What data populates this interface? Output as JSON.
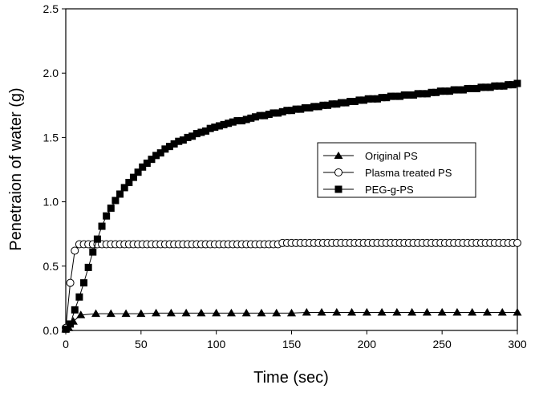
{
  "chart_data": {
    "type": "line",
    "title": "",
    "xlabel": "Time (sec)",
    "ylabel": "Penetraion of water (g)",
    "xlim": [
      0,
      300
    ],
    "ylim": [
      0,
      2.5
    ],
    "xticks": [
      0,
      50,
      100,
      150,
      200,
      250,
      300
    ],
    "xtick_labels": [
      "0",
      "50",
      "100",
      "150",
      "200",
      "250",
      "300"
    ],
    "yticks": [
      0,
      0.5,
      1.0,
      1.5,
      2.0,
      2.5
    ],
    "ytick_labels": [
      "0.0",
      "0.5",
      "1.0",
      "1.5",
      "2.0",
      "2.5"
    ],
    "grid": false,
    "legend_position": "center-right",
    "series": [
      {
        "name": "Original PS",
        "marker": "filled-triangle",
        "color": "#000000",
        "x": [
          0,
          2,
          5,
          10,
          20,
          30,
          40,
          50,
          60,
          70,
          80,
          90,
          100,
          110,
          120,
          130,
          140,
          150,
          160,
          170,
          180,
          190,
          200,
          210,
          220,
          230,
          240,
          250,
          260,
          270,
          280,
          290,
          300
        ],
        "y": [
          0.01,
          0.02,
          0.07,
          0.12,
          0.13,
          0.13,
          0.13,
          0.13,
          0.135,
          0.135,
          0.135,
          0.135,
          0.135,
          0.135,
          0.135,
          0.135,
          0.135,
          0.135,
          0.14,
          0.14,
          0.14,
          0.14,
          0.14,
          0.14,
          0.14,
          0.14,
          0.14,
          0.14,
          0.14,
          0.14,
          0.14,
          0.14,
          0.14
        ]
      },
      {
        "name": "Plasma treated PS",
        "marker": "open-circle",
        "color": "#000000",
        "x": [
          0,
          3,
          6,
          9,
          12,
          15,
          18,
          21,
          24,
          27,
          30,
          33,
          36,
          39,
          42,
          45,
          48,
          51,
          54,
          57,
          60,
          63,
          66,
          69,
          72,
          75,
          78,
          81,
          84,
          87,
          90,
          93,
          96,
          99,
          102,
          105,
          108,
          111,
          114,
          117,
          120,
          123,
          126,
          129,
          132,
          135,
          138,
          141,
          144,
          147,
          150,
          153,
          156,
          159,
          162,
          165,
          168,
          171,
          174,
          177,
          180,
          183,
          186,
          189,
          192,
          195,
          198,
          201,
          204,
          207,
          210,
          213,
          216,
          219,
          222,
          225,
          228,
          231,
          234,
          237,
          240,
          243,
          246,
          249,
          252,
          255,
          258,
          261,
          264,
          267,
          270,
          273,
          276,
          279,
          282,
          285,
          288,
          291,
          294,
          297,
          300
        ],
        "y": [
          0.02,
          0.37,
          0.62,
          0.67,
          0.67,
          0.67,
          0.67,
          0.67,
          0.67,
          0.67,
          0.67,
          0.67,
          0.67,
          0.67,
          0.67,
          0.67,
          0.67,
          0.67,
          0.67,
          0.67,
          0.67,
          0.67,
          0.67,
          0.67,
          0.67,
          0.67,
          0.67,
          0.67,
          0.67,
          0.67,
          0.67,
          0.67,
          0.67,
          0.67,
          0.67,
          0.67,
          0.67,
          0.67,
          0.67,
          0.67,
          0.67,
          0.67,
          0.67,
          0.67,
          0.67,
          0.67,
          0.67,
          0.67,
          0.68,
          0.68,
          0.68,
          0.68,
          0.68,
          0.68,
          0.68,
          0.68,
          0.68,
          0.68,
          0.68,
          0.68,
          0.68,
          0.68,
          0.68,
          0.68,
          0.68,
          0.68,
          0.68,
          0.68,
          0.68,
          0.68,
          0.68,
          0.68,
          0.68,
          0.68,
          0.68,
          0.68,
          0.68,
          0.68,
          0.68,
          0.68,
          0.68,
          0.68,
          0.68,
          0.68,
          0.68,
          0.68,
          0.68,
          0.68,
          0.68,
          0.68,
          0.68,
          0.68,
          0.68,
          0.68,
          0.68,
          0.68,
          0.68,
          0.68,
          0.68,
          0.68,
          0.68
        ]
      },
      {
        "name": "PEG-g-PS",
        "marker": "filled-square",
        "color": "#000000",
        "x": [
          0,
          3,
          6,
          9,
          12,
          15,
          18,
          21,
          24,
          27,
          30,
          33,
          36,
          39,
          42,
          45,
          48,
          51,
          54,
          57,
          60,
          63,
          66,
          69,
          72,
          75,
          78,
          81,
          84,
          87,
          90,
          93,
          96,
          99,
          102,
          105,
          108,
          111,
          114,
          117,
          120,
          123,
          126,
          129,
          132,
          135,
          138,
          141,
          144,
          147,
          150,
          153,
          156,
          159,
          162,
          165,
          168,
          171,
          174,
          177,
          180,
          183,
          186,
          189,
          192,
          195,
          198,
          201,
          204,
          207,
          210,
          213,
          216,
          219,
          222,
          225,
          228,
          231,
          234,
          237,
          240,
          243,
          246,
          249,
          252,
          255,
          258,
          261,
          264,
          267,
          270,
          273,
          276,
          279,
          282,
          285,
          288,
          291,
          294,
          297,
          300
        ],
        "y": [
          0.01,
          0.05,
          0.16,
          0.26,
          0.37,
          0.49,
          0.61,
          0.71,
          0.81,
          0.89,
          0.95,
          1.01,
          1.06,
          1.11,
          1.15,
          1.19,
          1.23,
          1.27,
          1.3,
          1.33,
          1.36,
          1.38,
          1.41,
          1.43,
          1.45,
          1.47,
          1.48,
          1.5,
          1.51,
          1.53,
          1.54,
          1.55,
          1.57,
          1.58,
          1.59,
          1.6,
          1.61,
          1.62,
          1.63,
          1.63,
          1.64,
          1.65,
          1.66,
          1.67,
          1.67,
          1.68,
          1.69,
          1.69,
          1.7,
          1.71,
          1.71,
          1.72,
          1.72,
          1.73,
          1.73,
          1.74,
          1.74,
          1.75,
          1.75,
          1.76,
          1.76,
          1.77,
          1.77,
          1.78,
          1.78,
          1.79,
          1.79,
          1.8,
          1.8,
          1.8,
          1.81,
          1.81,
          1.82,
          1.82,
          1.82,
          1.83,
          1.83,
          1.83,
          1.84,
          1.84,
          1.84,
          1.85,
          1.85,
          1.86,
          1.86,
          1.86,
          1.87,
          1.87,
          1.87,
          1.88,
          1.88,
          1.88,
          1.89,
          1.89,
          1.89,
          1.9,
          1.9,
          1.9,
          1.91,
          1.91,
          1.92
        ]
      }
    ]
  }
}
